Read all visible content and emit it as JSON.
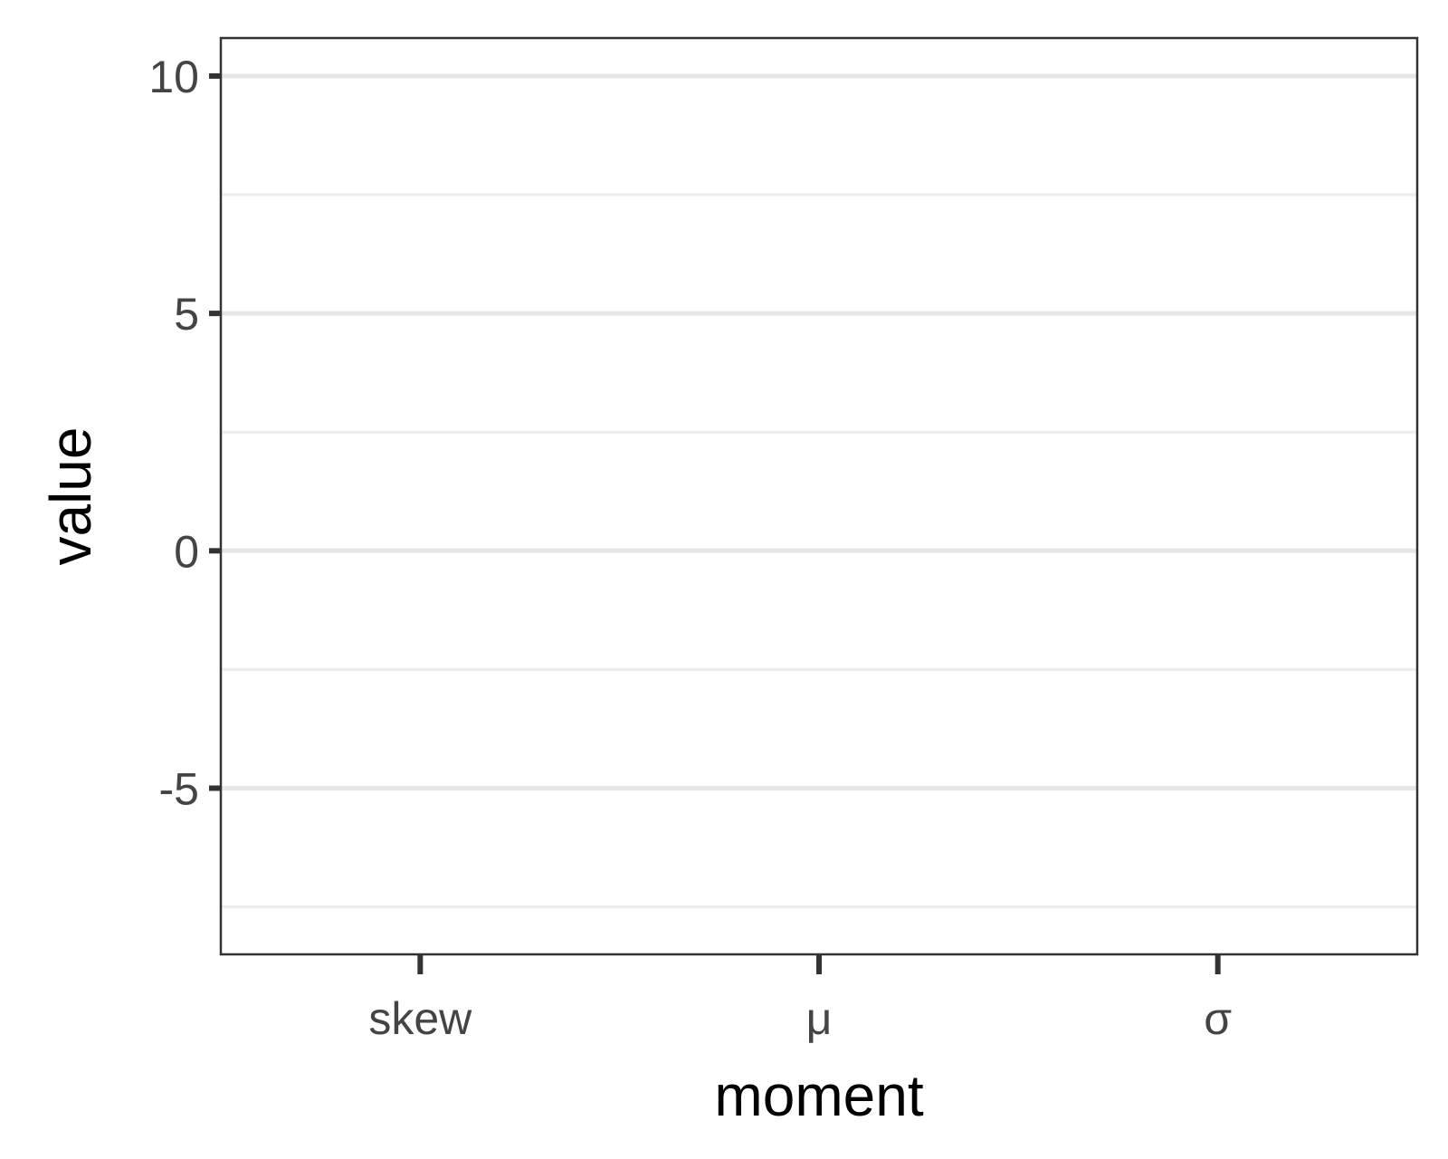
{
  "chart_data": {
    "type": "bar",
    "title": "",
    "xlabel": "moment",
    "ylabel": "value",
    "categories": [
      "skew",
      "μ",
      "σ"
    ],
    "series": [],
    "ylim": [
      -8.5,
      10.8
    ],
    "y_major_ticks": [
      -5,
      0,
      5,
      10
    ],
    "y_tick_labels": [
      "-5",
      "0",
      "5",
      "10"
    ],
    "y_minor_ticks": [
      -7.5,
      -2.5,
      2.5,
      7.5
    ],
    "grid": "horizontal",
    "legend": "none",
    "colors": {
      "grid": "#e6e6e6",
      "border": "#333333",
      "tick_text": "#444444",
      "axis_title": "#000000"
    }
  }
}
